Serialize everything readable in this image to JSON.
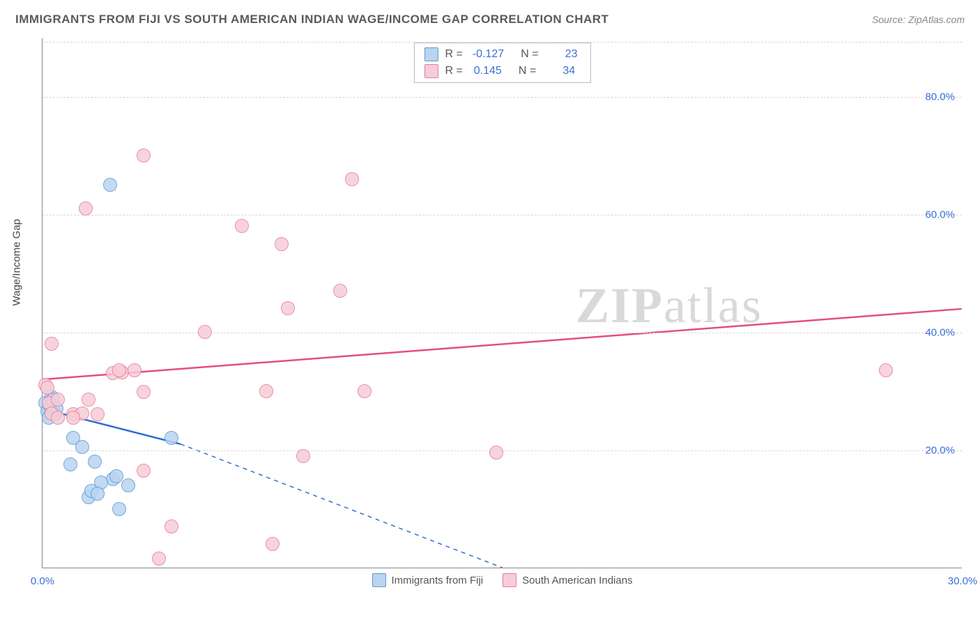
{
  "title": "IMMIGRANTS FROM FIJI VS SOUTH AMERICAN INDIAN WAGE/INCOME GAP CORRELATION CHART",
  "source": "Source: ZipAtlas.com",
  "y_axis_title": "Wage/Income Gap",
  "watermark_bold": "ZIP",
  "watermark_light": "atlas",
  "chart": {
    "type": "scatter",
    "xlim": [
      0,
      30
    ],
    "ylim": [
      0,
      90
    ],
    "x_ticks": [
      0,
      30
    ],
    "x_tick_labels": [
      "0.0%",
      "30.0%"
    ],
    "y_ticks": [
      20,
      40,
      60,
      80
    ],
    "y_tick_labels": [
      "20.0%",
      "40.0%",
      "60.0%",
      "80.0%"
    ],
    "background_color": "#ffffff",
    "grid_color": "#d8d8d8",
    "axis_color": "#888888",
    "tick_label_color": "#3a6fd8",
    "marker_radius": 10,
    "marker_stroke_width": 1.5,
    "trend_line_width": 2.5,
    "series": [
      {
        "name": "Immigrants from Fiji",
        "fill": "#b9d4f0",
        "stroke": "#5a9bd5",
        "line_color": "#2e6fd0",
        "R": "-0.127",
        "N": "23",
        "trend": {
          "x1": 0,
          "y1": 27,
          "x2_solid": 4.5,
          "y2_solid": 21,
          "x2_dash": 15,
          "y2_dash": 0
        },
        "points": [
          [
            0.1,
            28
          ],
          [
            0.2,
            27
          ],
          [
            0.3,
            29
          ],
          [
            0.15,
            26.5
          ],
          [
            0.25,
            27.5
          ],
          [
            0.4,
            26
          ],
          [
            0.35,
            28.5
          ],
          [
            0.2,
            25.5
          ],
          [
            0.45,
            27
          ],
          [
            1.0,
            22
          ],
          [
            1.3,
            20.5
          ],
          [
            4.2,
            22
          ],
          [
            1.7,
            18
          ],
          [
            0.9,
            17.5
          ],
          [
            2.3,
            15
          ],
          [
            1.9,
            14.5
          ],
          [
            2.4,
            15.5
          ],
          [
            1.5,
            12
          ],
          [
            1.6,
            13
          ],
          [
            1.8,
            12.5
          ],
          [
            2.5,
            10
          ],
          [
            2.8,
            14
          ],
          [
            2.2,
            65
          ]
        ]
      },
      {
        "name": "South American Indians",
        "fill": "#f6cdd6",
        "stroke": "#e879a0",
        "line_color": "#e24d89",
        "R": "0.145",
        "N": "34",
        "trend": {
          "x1": 0,
          "y1": 32,
          "x2_solid": 30,
          "y2_solid": 44,
          "x2_dash": 30,
          "y2_dash": 44
        },
        "points": [
          [
            0.3,
            38
          ],
          [
            0.1,
            31
          ],
          [
            0.15,
            30.5
          ],
          [
            0.2,
            28
          ],
          [
            0.5,
            28.5
          ],
          [
            1.5,
            28.5
          ],
          [
            0.3,
            26.2
          ],
          [
            1.0,
            26
          ],
          [
            1.3,
            26.2
          ],
          [
            1.8,
            26
          ],
          [
            2.3,
            33
          ],
          [
            2.6,
            33.2
          ],
          [
            2.5,
            33.5
          ],
          [
            3.3,
            29.8
          ],
          [
            3.0,
            33.5
          ],
          [
            3.3,
            70
          ],
          [
            1.4,
            61
          ],
          [
            3.3,
            16.5
          ],
          [
            6.5,
            58
          ],
          [
            7.8,
            55
          ],
          [
            5.3,
            40
          ],
          [
            9.7,
            47
          ],
          [
            8.0,
            44
          ],
          [
            10.1,
            66
          ],
          [
            7.3,
            30
          ],
          [
            10.5,
            30
          ],
          [
            7.5,
            4
          ],
          [
            8.5,
            19
          ],
          [
            14.8,
            19.5
          ],
          [
            3.8,
            1.5
          ],
          [
            4.2,
            7
          ],
          [
            27.5,
            33.5
          ],
          [
            1.0,
            25.5
          ],
          [
            0.5,
            25.5
          ]
        ]
      }
    ]
  },
  "legend": {
    "r_label": "R  =",
    "n_label": "N  ="
  }
}
